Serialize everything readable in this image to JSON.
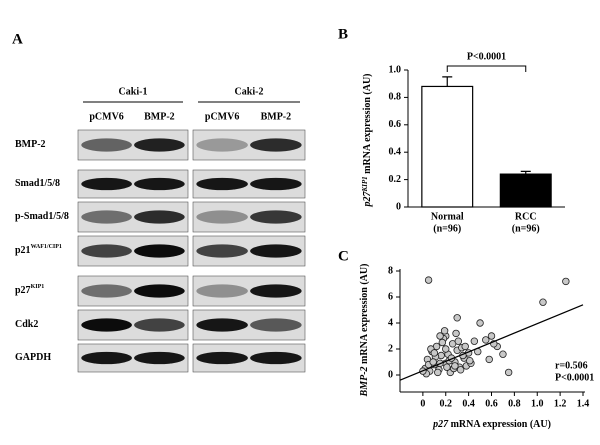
{
  "blot": {
    "label": "A",
    "groups": [
      {
        "name": "Caki-1",
        "lanes": [
          "pCMV6",
          "BMP-2"
        ]
      },
      {
        "name": "Caki-2",
        "lanes": [
          "pCMV6",
          "BMP-2"
        ]
      }
    ],
    "rows": [
      {
        "label": "BMP-2"
      },
      {
        "label": "Smad1/5/8"
      },
      {
        "label": "p-Smad1/5/8"
      },
      {
        "label": "p21",
        "sup": "WAF1/CIP1"
      },
      {
        "label": "p27",
        "sup": "KIP1"
      },
      {
        "label": "Cdk2"
      },
      {
        "label": "GAPDH"
      }
    ]
  },
  "chart_data": [
    {
      "type": "bar",
      "panel": "B",
      "categories": [
        "Normal",
        "RCC"
      ],
      "sample_sizes": [
        "(n=96)",
        "(n=96)"
      ],
      "values": [
        0.88,
        0.24
      ],
      "errors": [
        0.07,
        0.02
      ],
      "colors": [
        "#ffffff",
        "#000000"
      ],
      "y_label": {
        "gene": "p27",
        "sup": "KIP1",
        "rest": " mRNA expression (AU)"
      },
      "ylim": [
        0,
        1
      ],
      "yticks": [
        0,
        0.2,
        0.4,
        0.6,
        0.8,
        {
          "value": 1,
          "label": "1.0"
        }
      ],
      "annotation": "P<0.0001"
    },
    {
      "type": "scatter",
      "panel": "C",
      "x": [
        0.05,
        1.05,
        1.25,
        0.6,
        0.65,
        0.75,
        0.5,
        0.45,
        0.3,
        0.2,
        0.02,
        0.04,
        0.06,
        0.08,
        0.1,
        0.12,
        0.14,
        0.16,
        0.18,
        0.2,
        0.22,
        0.24,
        0.26,
        0.28,
        0.3,
        0.32,
        0.34,
        0.36,
        0.38,
        0.4,
        0.03,
        0.07,
        0.11,
        0.15,
        0.19,
        0.23,
        0.27,
        0.31,
        0.35,
        0.42,
        0.48,
        0.55,
        0.58,
        0.62,
        0.7,
        0.0,
        0.05,
        0.09,
        0.13,
        0.17,
        0.21,
        0.25,
        0.29,
        0.33,
        0.37,
        0.41,
        0.1,
        0.2,
        0.15,
        0.28
      ],
      "y": [
        7.3,
        5.6,
        7.2,
        3.0,
        2.2,
        0.2,
        4.0,
        2.6,
        4.4,
        3.0,
        0.5,
        1.2,
        0.3,
        1.8,
        0.8,
        2.2,
        0.4,
        1.5,
        2.8,
        0.9,
        1.6,
        0.2,
        2.4,
        1.0,
        1.9,
        0.6,
        2.1,
        1.3,
        0.7,
        1.7,
        0.1,
        2.0,
        1.4,
        0.9,
        3.4,
        1.1,
        0.5,
        2.6,
        1.5,
        0.9,
        1.8,
        2.7,
        1.2,
        2.4,
        1.6,
        0.3,
        0.8,
        1.0,
        0.2,
        2.5,
        0.6,
        1.3,
        3.2,
        0.4,
        2.2,
        1.1,
        1.7,
        2.0,
        3.0,
        0.7
      ],
      "trend_line": {
        "x": [
          -0.2,
          1.4
        ],
        "y": [
          -0.4,
          5.4
        ]
      },
      "x_label": {
        "gene": "p27",
        "rest": " mRNA expression (AU)"
      },
      "y_label": {
        "gene": "BMP-2",
        "rest": " mRNA expression (AU)"
      },
      "xlim": [
        -0.2,
        1.4
      ],
      "xticks": [
        0,
        0.2,
        0.4,
        0.6,
        0.8,
        {
          "value": 1,
          "label": "1.0"
        },
        1.2,
        1.4
      ],
      "ylim": [
        -1,
        8
      ],
      "yticks": [
        0,
        2,
        4,
        6,
        8
      ],
      "annotations": [
        "r=0.506",
        "P<0.0001"
      ]
    }
  ]
}
